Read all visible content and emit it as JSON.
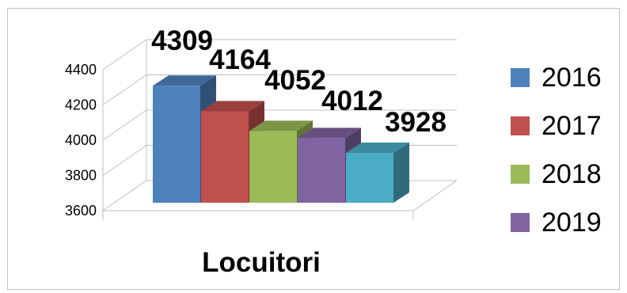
{
  "chart_data": {
    "type": "bar",
    "style": "3d-clustered-column",
    "categories": [
      "Locuitori"
    ],
    "series": [
      {
        "name": "2016",
        "values": [
          4309
        ],
        "color": "#4F81BD"
      },
      {
        "name": "2017",
        "values": [
          4164
        ],
        "color": "#C0504D"
      },
      {
        "name": "2018",
        "values": [
          4052
        ],
        "color": "#9BBB59"
      },
      {
        "name": "2019",
        "values": [
          4012
        ],
        "color": "#8064A2"
      },
      {
        "name": "",
        "values": [
          3928
        ],
        "color": "#4BACC6"
      }
    ],
    "title": "",
    "xlabel": "Locuitori",
    "ylabel": "",
    "ylim": [
      3600,
      4400
    ],
    "yticks": [
      "3600",
      "3800",
      "4000",
      "4200",
      "4400"
    ],
    "grid": true,
    "data_labels": true,
    "legend_placement": "right"
  }
}
